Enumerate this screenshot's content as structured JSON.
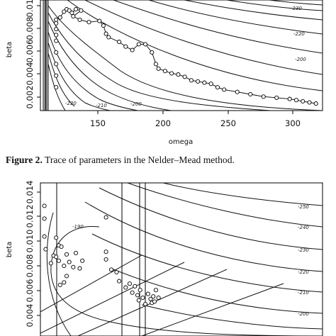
{
  "caption": {
    "label": "Figure 2.",
    "text": "Trace of parameters in the Nelder–Mead method."
  },
  "chart_data": [
    {
      "type": "scatter",
      "title": "",
      "xlabel": "omega",
      "ylabel": "beta",
      "xlim": [
        100,
        315
      ],
      "ylim": [
        0.002,
        0.0115
      ],
      "xticks": [
        "150",
        "200",
        "250",
        "300"
      ],
      "yticks": [
        "0.002",
        "0.004",
        "0.006",
        "0.008",
        "0.010"
      ],
      "contour_labels": [
        "-230",
        "-220",
        "-200",
        "-220",
        "-210",
        "-200"
      ],
      "series": [
        {
          "x": [
            112,
            115,
            118,
            120,
            122,
            124,
            127,
            131,
            125,
            130,
            137,
            145,
            148,
            150,
            152,
            160,
            165,
            170,
            175,
            180,
            185,
            188,
            190,
            195,
            200,
            205,
            210,
            215,
            220,
            225,
            230,
            235,
            240,
            250,
            260,
            270,
            280,
            290,
            295,
            300,
            305,
            310,
            112,
            112,
            112,
            112,
            112,
            112,
            112,
            112
          ],
          "y": [
            0.0098,
            0.01,
            0.0105,
            0.0107,
            0.0106,
            0.0104,
            0.0107,
            0.0106,
            0.0101,
            0.0098,
            0.0096,
            0.0097,
            0.0093,
            0.0086,
            0.0083,
            0.0079,
            0.0075,
            0.0072,
            0.0077,
            0.0077,
            0.007,
            0.006,
            0.0056,
            0.0054,
            0.0052,
            0.0051,
            0.0049,
            0.0046,
            0.0045,
            0.0044,
            0.0043,
            0.004,
            0.0038,
            0.0036,
            0.0034,
            0.0032,
            0.0031,
            0.003,
            0.0029,
            0.0028,
            0.0027,
            0.0026,
            0.0095,
            0.009,
            0.0085,
            0.008,
            0.007,
            0.006,
            0.005,
            0.004
          ]
        }
      ]
    },
    {
      "type": "scatter",
      "title": "",
      "xlabel": "",
      "ylabel": "beta",
      "xlim": [
        100,
        315
      ],
      "ylim": [
        0.003,
        0.015
      ],
      "xticks": [],
      "yticks": [
        "0.004",
        "0.006",
        "0.008",
        "0.010",
        "0.012",
        "0.014"
      ],
      "contour_labels": [
        "-190",
        "-250",
        "-240",
        "-230",
        "-220",
        "-210",
        "-200"
      ],
      "series": [
        {
          "x": [
            103,
            103,
            103,
            104,
            108,
            110,
            112,
            114,
            112,
            114,
            116,
            118,
            120,
            122,
            125,
            127,
            130,
            132,
            150,
            154,
            158,
            160,
            165,
            168,
            170,
            172,
            174,
            175,
            176,
            178,
            180,
            182,
            184,
            185,
            186,
            187,
            188,
            190,
            120,
            118,
            115,
            150,
            150
          ],
          "y": [
            0.0132,
            0.0122,
            0.0108,
            0.0098,
            0.0087,
            0.0093,
            0.0107,
            0.0101,
            0.0092,
            0.0089,
            0.01,
            0.0085,
            0.0094,
            0.0088,
            0.0084,
            0.0095,
            0.0083,
            0.0089,
            0.0096,
            0.0082,
            0.008,
            0.0073,
            0.0068,
            0.0071,
            0.0064,
            0.0069,
            0.0062,
            0.0058,
            0.0066,
            0.006,
            0.0055,
            0.0063,
            0.0059,
            0.0056,
            0.0061,
            0.0057,
            0.0066,
            0.006,
            0.0077,
            0.0072,
            0.007,
            0.009,
            0.0123
          ]
        }
      ]
    }
  ]
}
